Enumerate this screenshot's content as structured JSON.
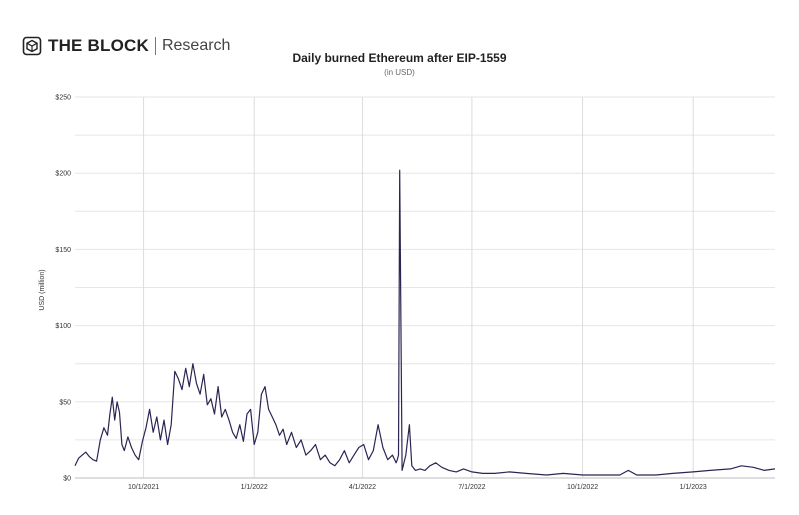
{
  "brand": {
    "name": "THE BLOCK",
    "sub": "Research",
    "logo_icon": "cube-logo-icon"
  },
  "chart_data": {
    "type": "line",
    "title": "Daily burned Ethereum after EIP-1559",
    "subtitle": "(in USD)",
    "xlabel": "",
    "ylabel": "USD (million)",
    "ylim": [
      0,
      250
    ],
    "xlim": [
      "2021-08-05",
      "2023-03-10"
    ],
    "y_ticks": [
      0,
      50,
      100,
      150,
      200,
      250
    ],
    "y_tick_labels": [
      "$0",
      "$50",
      "$100",
      "$150",
      "$200",
      "$250"
    ],
    "x_ticks": [
      "2021-10-01",
      "2022-01-01",
      "2022-04-01",
      "2022-07-01",
      "2022-10-01",
      "2023-01-01"
    ],
    "x_tick_labels": [
      "10/1/2021",
      "1/1/2022",
      "4/1/2022",
      "7/1/2022",
      "10/1/2022",
      "1/1/2023"
    ],
    "grid": true,
    "line_color": "#2b2552",
    "series": [
      {
        "x": [
          "2021-08-05",
          "2021-08-08",
          "2021-08-11",
          "2021-08-14",
          "2021-08-17",
          "2021-08-20",
          "2021-08-23",
          "2021-08-26",
          "2021-08-29",
          "2021-09-01",
          "2021-09-03",
          "2021-09-05",
          "2021-09-07",
          "2021-09-09",
          "2021-09-11",
          "2021-09-13",
          "2021-09-15",
          "2021-09-18",
          "2021-09-21",
          "2021-09-24",
          "2021-09-27",
          "2021-09-30",
          "2021-10-03",
          "2021-10-06",
          "2021-10-09",
          "2021-10-12",
          "2021-10-15",
          "2021-10-18",
          "2021-10-21",
          "2021-10-24",
          "2021-10-27",
          "2021-10-30",
          "2021-11-02",
          "2021-11-05",
          "2021-11-08",
          "2021-11-11",
          "2021-11-14",
          "2021-11-17",
          "2021-11-20",
          "2021-11-23",
          "2021-11-26",
          "2021-11-29",
          "2021-12-02",
          "2021-12-05",
          "2021-12-08",
          "2021-12-11",
          "2021-12-14",
          "2021-12-17",
          "2021-12-20",
          "2021-12-23",
          "2021-12-26",
          "2021-12-29",
          "2022-01-01",
          "2022-01-04",
          "2022-01-07",
          "2022-01-10",
          "2022-01-13",
          "2022-01-16",
          "2022-01-19",
          "2022-01-22",
          "2022-01-25",
          "2022-01-28",
          "2022-02-01",
          "2022-02-05",
          "2022-02-09",
          "2022-02-13",
          "2022-02-17",
          "2022-02-21",
          "2022-02-25",
          "2022-03-01",
          "2022-03-05",
          "2022-03-09",
          "2022-03-13",
          "2022-03-17",
          "2022-03-21",
          "2022-03-25",
          "2022-03-29",
          "2022-04-02",
          "2022-04-06",
          "2022-04-10",
          "2022-04-14",
          "2022-04-18",
          "2022-04-22",
          "2022-04-26",
          "2022-04-29",
          "2022-04-30",
          "2022-05-01",
          "2022-05-02",
          "2022-05-04",
          "2022-05-07",
          "2022-05-10",
          "2022-05-12",
          "2022-05-15",
          "2022-05-19",
          "2022-05-23",
          "2022-05-27",
          "2022-06-01",
          "2022-06-06",
          "2022-06-12",
          "2022-06-18",
          "2022-06-24",
          "2022-07-01",
          "2022-07-10",
          "2022-07-20",
          "2022-08-01",
          "2022-08-15",
          "2022-09-01",
          "2022-09-15",
          "2022-10-01",
          "2022-10-15",
          "2022-11-01",
          "2022-11-08",
          "2022-11-15",
          "2022-12-01",
          "2022-12-15",
          "2023-01-01",
          "2023-01-15",
          "2023-02-01",
          "2023-02-10",
          "2023-02-20",
          "2023-03-01",
          "2023-03-10"
        ],
        "y": [
          8,
          13,
          15,
          17,
          14,
          12,
          11,
          25,
          33,
          28,
          42,
          53,
          38,
          50,
          43,
          22,
          18,
          27,
          20,
          15,
          12,
          24,
          33,
          45,
          30,
          40,
          25,
          38,
          22,
          35,
          70,
          65,
          58,
          72,
          60,
          75,
          62,
          55,
          68,
          48,
          52,
          42,
          60,
          40,
          45,
          38,
          30,
          26,
          35,
          24,
          42,
          45,
          22,
          30,
          55,
          60,
          45,
          40,
          35,
          28,
          32,
          22,
          30,
          20,
          25,
          15,
          18,
          22,
          12,
          15,
          10,
          8,
          12,
          18,
          10,
          15,
          20,
          22,
          12,
          18,
          35,
          20,
          12,
          15,
          10,
          12,
          15,
          202,
          5,
          15,
          35,
          8,
          5,
          6,
          5,
          8,
          10,
          7,
          5,
          4,
          6,
          4,
          3,
          3,
          4,
          3,
          2,
          3,
          2,
          2,
          2,
          5,
          2,
          2,
          3,
          4,
          5,
          6,
          8,
          7,
          5,
          6
        ]
      }
    ]
  }
}
